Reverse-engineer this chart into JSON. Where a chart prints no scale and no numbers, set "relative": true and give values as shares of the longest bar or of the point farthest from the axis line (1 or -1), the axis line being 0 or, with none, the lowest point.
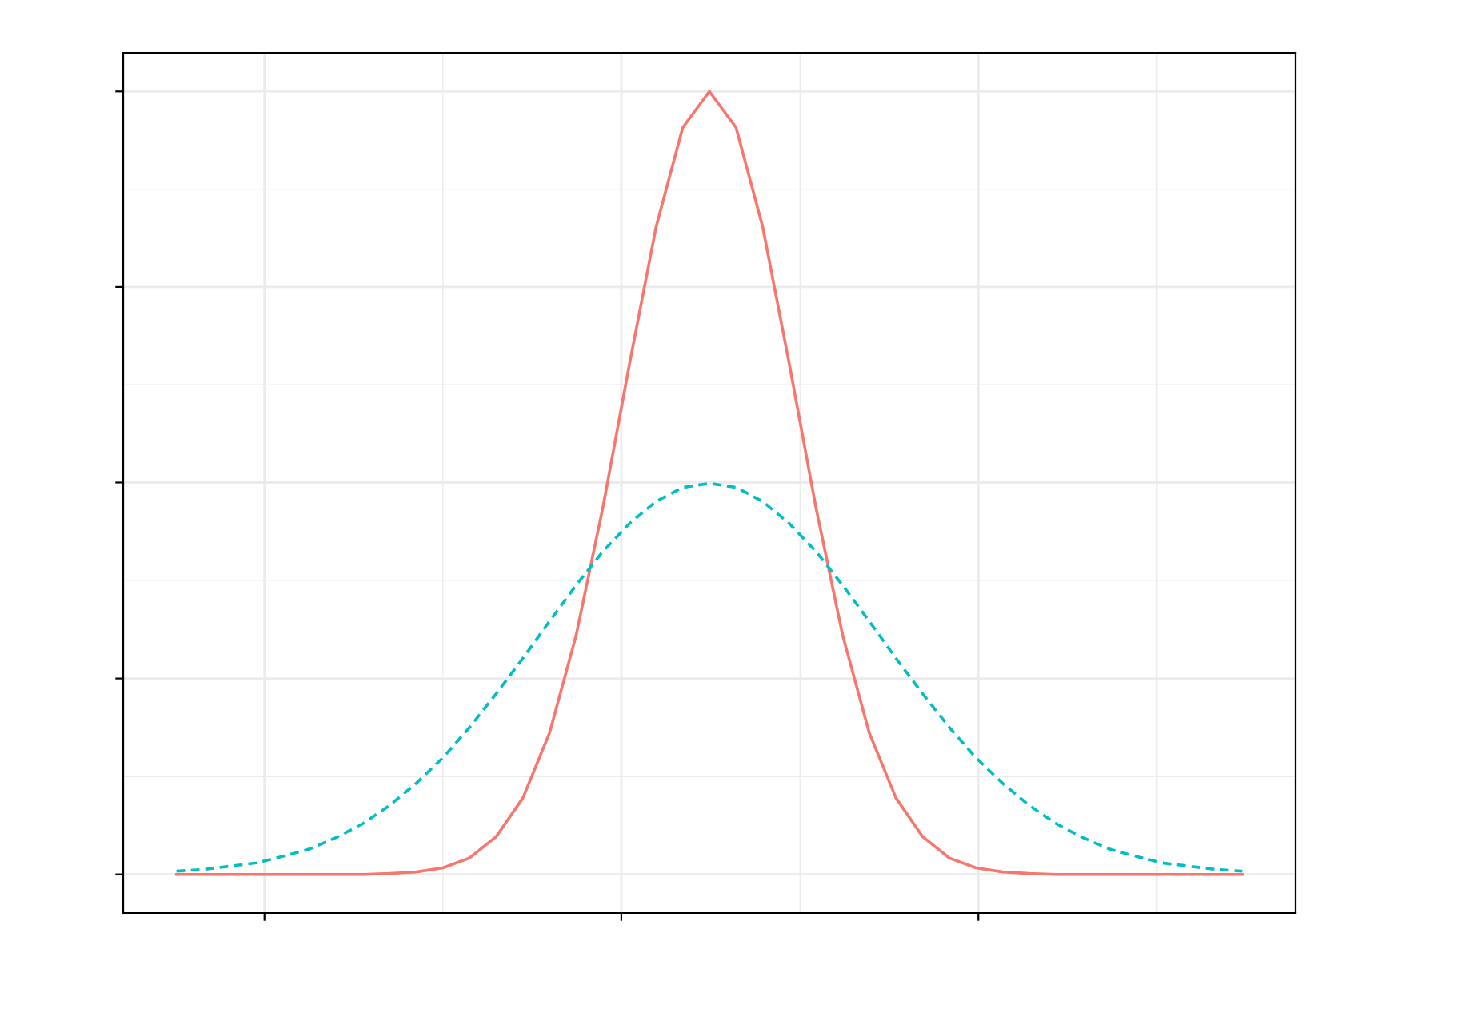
{
  "chart_data": {
    "type": "line",
    "relative": true,
    "categories": [
      null,
      null,
      null,
      null,
      null,
      null,
      null,
      null,
      null,
      null,
      null,
      null,
      null,
      null,
      null,
      null,
      null,
      null,
      null,
      null,
      null,
      null,
      null,
      null,
      null,
      null,
      null,
      null,
      null,
      null,
      null,
      null,
      null,
      null,
      null,
      null,
      null,
      null,
      null,
      null,
      null
    ],
    "series": [
      {
        "color": "#f8766d",
        "line_style": "solid",
        "values": [
          0.047,
          0.047,
          0.047,
          0.047,
          0.047,
          0.047,
          0.047,
          0.047,
          0.048,
          0.05,
          0.055,
          0.067,
          0.093,
          0.14,
          0.219,
          0.338,
          0.493,
          0.668,
          0.835,
          0.956,
          1.0,
          0.956,
          0.835,
          0.668,
          0.493,
          0.338,
          0.219,
          0.14,
          0.093,
          0.067,
          0.055,
          0.05,
          0.048,
          0.047,
          0.047,
          0.047,
          0.047,
          0.047,
          0.047,
          0.047,
          0.047
        ]
      },
      {
        "color": "#00bfc4",
        "line_style": "dashed",
        "values": [
          0.051,
          0.053,
          0.057,
          0.061,
          0.069,
          0.078,
          0.092,
          0.109,
          0.131,
          0.158,
          0.189,
          0.226,
          0.267,
          0.31,
          0.355,
          0.399,
          0.44,
          0.474,
          0.501,
          0.518,
          0.523,
          0.518,
          0.501,
          0.474,
          0.44,
          0.399,
          0.355,
          0.31,
          0.267,
          0.226,
          0.189,
          0.158,
          0.131,
          0.109,
          0.092,
          0.078,
          0.069,
          0.061,
          0.057,
          0.053,
          0.051
        ]
      }
    ],
    "grid": true,
    "tick_labels": false
  }
}
